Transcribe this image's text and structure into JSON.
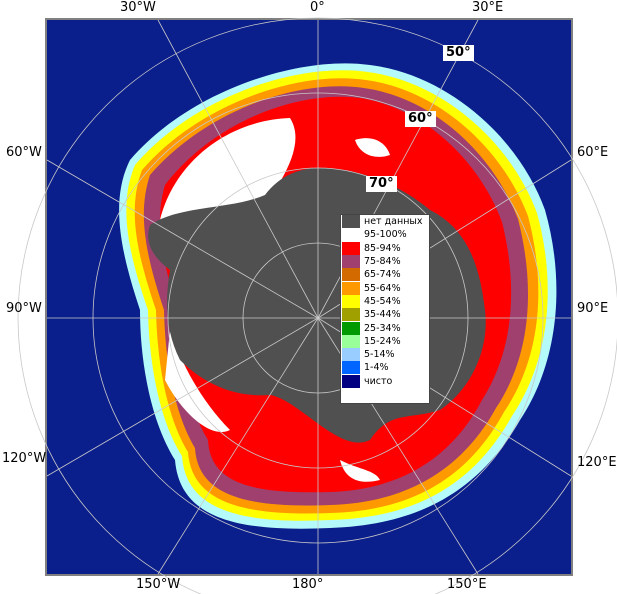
{
  "map": {
    "longitude_labels": {
      "top": [
        "30°W",
        "0°",
        "30°E"
      ],
      "left": [
        "60°W",
        "90°W",
        "120°W"
      ],
      "right": [
        "60°E",
        "90°E",
        "120°E"
      ],
      "bottom": [
        "150°W",
        "180°",
        "150°E"
      ]
    },
    "latitude_labels": [
      "50°",
      "60°",
      "70°"
    ],
    "colors": {
      "ocean": "#0a1e8c",
      "no_data": "#505050",
      "border": "#808080"
    }
  },
  "legend": [
    {
      "label": "нет данных",
      "color": "#505050"
    },
    {
      "label": "95-100%",
      "color": "#ffffff"
    },
    {
      "label": "85-94%",
      "color": "#ff0000"
    },
    {
      "label": "75-84%",
      "color": "#a0406e"
    },
    {
      "label": "65-74%",
      "color": "#d36a00"
    },
    {
      "label": "55-64%",
      "color": "#ff9900"
    },
    {
      "label": "45-54%",
      "color": "#ffff00"
    },
    {
      "label": "35-44%",
      "color": "#a0a000"
    },
    {
      "label": "25-34%",
      "color": "#009900"
    },
    {
      "label": "15-24%",
      "color": "#99ff99"
    },
    {
      "label": "5-14%",
      "color": "#99ccff"
    },
    {
      "label": "1-4%",
      "color": "#0066ff"
    },
    {
      "label": "чисто",
      "color": "#000080"
    }
  ]
}
